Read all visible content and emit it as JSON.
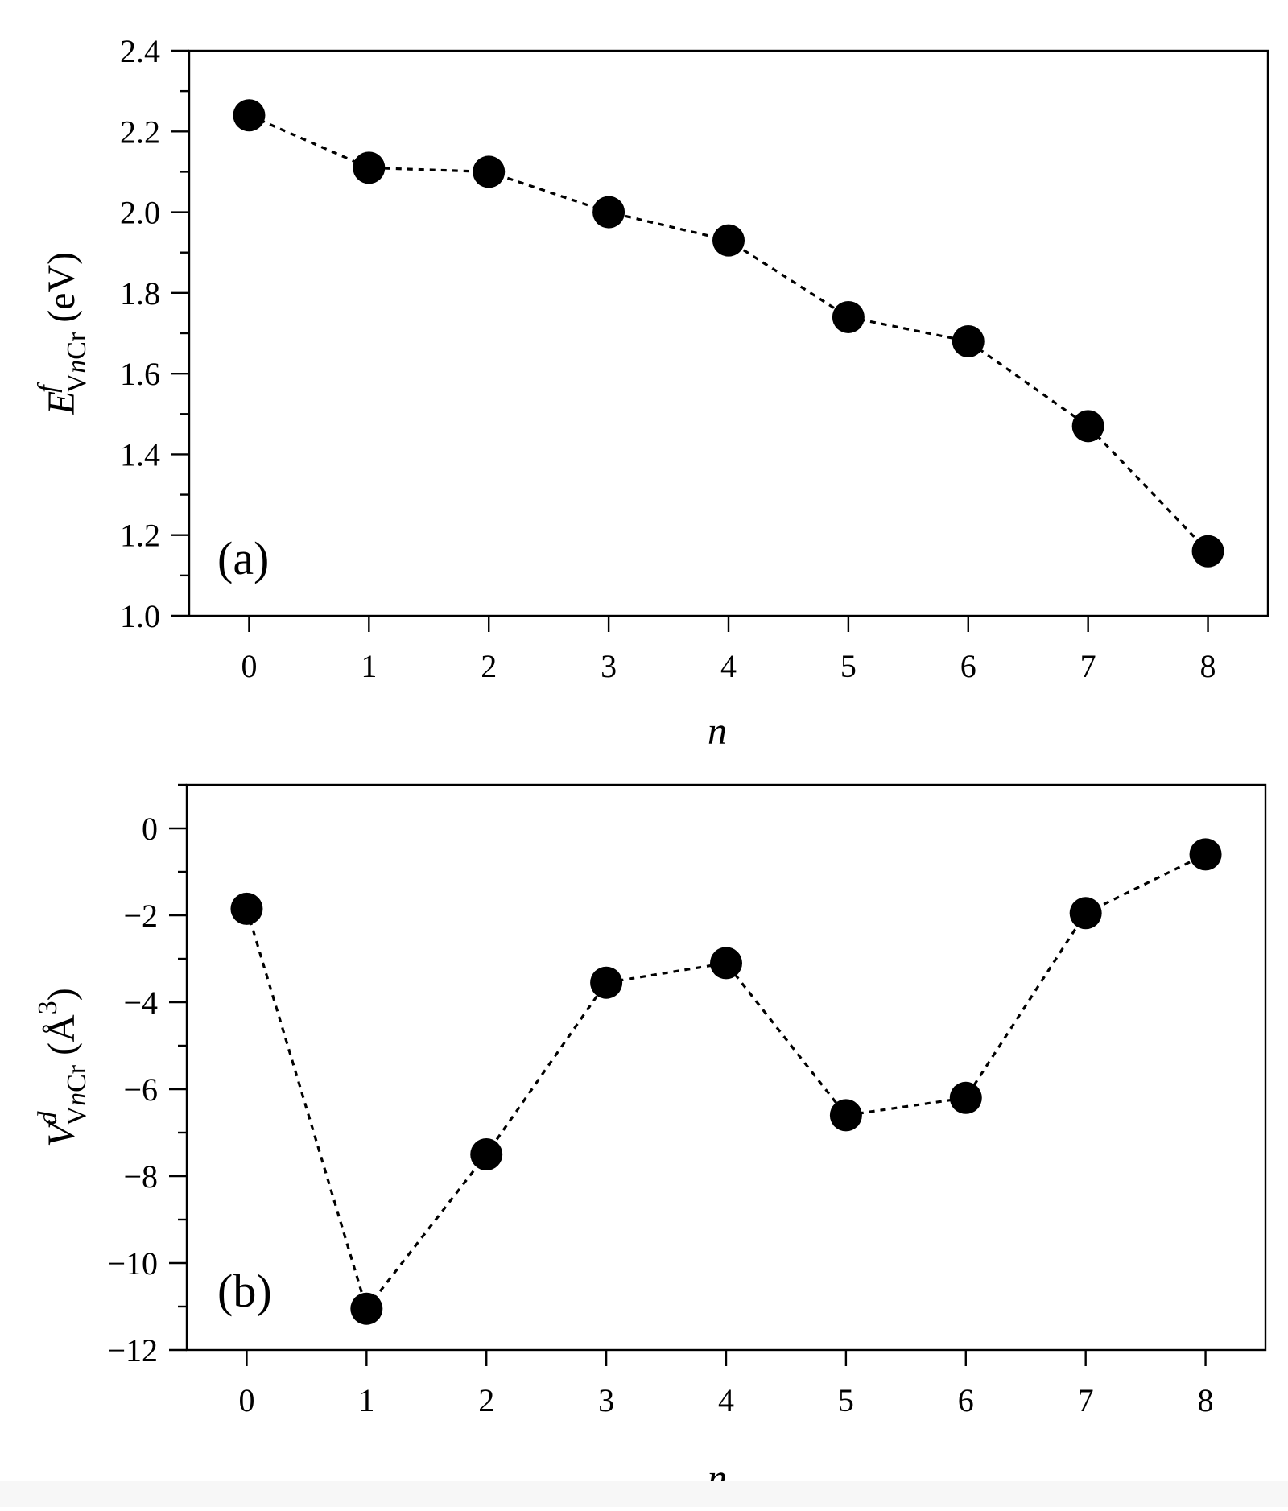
{
  "chart_data": [
    {
      "id": "a",
      "type": "line",
      "panel_label": "(a)",
      "title": "",
      "xlabel": "n",
      "ylabel": {
        "main": "E",
        "superscript": "f",
        "subscript_v": "V",
        "subscript_n": "n",
        "subscript_cr": "Cr",
        "unit": "(eV)"
      },
      "x": [
        0,
        1,
        2,
        3,
        4,
        5,
        6,
        7,
        8
      ],
      "values": [
        2.24,
        2.11,
        2.1,
        2.0,
        1.93,
        1.74,
        1.68,
        1.47,
        1.16
      ],
      "xlim": [
        -0.5,
        8.5
      ],
      "ylim": [
        1.0,
        2.4
      ],
      "x_ticks": [
        "0",
        "1",
        "2",
        "3",
        "4",
        "5",
        "6",
        "7",
        "8"
      ],
      "y_ticks": [
        {
          "value": 1.0,
          "label": "1.0"
        },
        {
          "value": 1.2,
          "label": "1.2"
        },
        {
          "value": 1.4,
          "label": "1.4"
        },
        {
          "value": 1.6,
          "label": "1.6"
        },
        {
          "value": 1.8,
          "label": "1.8"
        },
        {
          "value": 2.0,
          "label": "2.0"
        },
        {
          "value": 2.2,
          "label": "2.2"
        },
        {
          "value": 2.4,
          "label": "2.4"
        }
      ],
      "y_minor_step": 0.1,
      "line_style": "dotted",
      "marker": "filled-circle",
      "grid": false
    },
    {
      "id": "b",
      "type": "line",
      "panel_label": "(b)",
      "title": "",
      "xlabel": "n",
      "ylabel": {
        "main": "V",
        "superscript": "d",
        "subscript_v": "V",
        "subscript_n": "n",
        "subscript_cr": "Cr",
        "unit_open": "(Å",
        "unit_power": "3",
        "unit_close": ")"
      },
      "x": [
        0,
        1,
        2,
        3,
        4,
        5,
        6,
        7,
        8
      ],
      "values": [
        -1.85,
        -11.05,
        -7.5,
        -3.55,
        -3.1,
        -6.6,
        -6.2,
        -1.95,
        -0.6
      ],
      "xlim": [
        -0.5,
        8.5
      ],
      "ylim": [
        -12,
        1
      ],
      "x_ticks": [
        "0",
        "1",
        "2",
        "3",
        "4",
        "5",
        "6",
        "7",
        "8"
      ],
      "y_ticks": [
        {
          "value": -12,
          "label": "−12"
        },
        {
          "value": -10,
          "label": "−10"
        },
        {
          "value": -8,
          "label": "−8"
        },
        {
          "value": -6,
          "label": "−6"
        },
        {
          "value": -4,
          "label": "−4"
        },
        {
          "value": -2,
          "label": "−2"
        },
        {
          "value": 0,
          "label": "0"
        }
      ],
      "y_minor_step": 1,
      "line_style": "dotted",
      "marker": "filled-circle",
      "grid": false
    }
  ]
}
